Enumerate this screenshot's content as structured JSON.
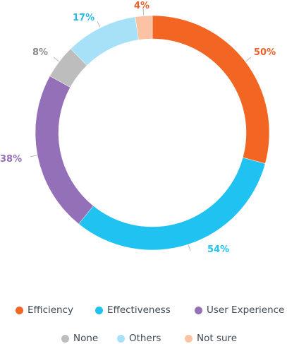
{
  "chart_data": {
    "type": "pie",
    "variant": "donut",
    "slices": [
      {
        "label": "Efficiency",
        "value": 50,
        "display": "50%",
        "color": "#f26522"
      },
      {
        "label": "Effectiveness",
        "value": 54,
        "display": "54%",
        "color": "#1fc2f0"
      },
      {
        "label": "User Experience",
        "value": 38,
        "display": "38%",
        "color": "#9470b8"
      },
      {
        "label": "None",
        "value": 8,
        "display": "8%",
        "color": "#bdbdbd"
      },
      {
        "label": "Others",
        "value": 17,
        "display": "17%",
        "color": "#a7e1f8"
      },
      {
        "label": "Not sure",
        "value": 4,
        "display": "4%",
        "color": "#fbc3a4"
      }
    ],
    "label_colors": {
      "Efficiency": "#e8602a",
      "Effectiveness": "#1fc2f0",
      "User Experience": "#9470b8",
      "None": "#8a8a8a",
      "Others": "#27bde8",
      "Not sure": "#e8602a"
    },
    "legend_placement": "bottom"
  }
}
